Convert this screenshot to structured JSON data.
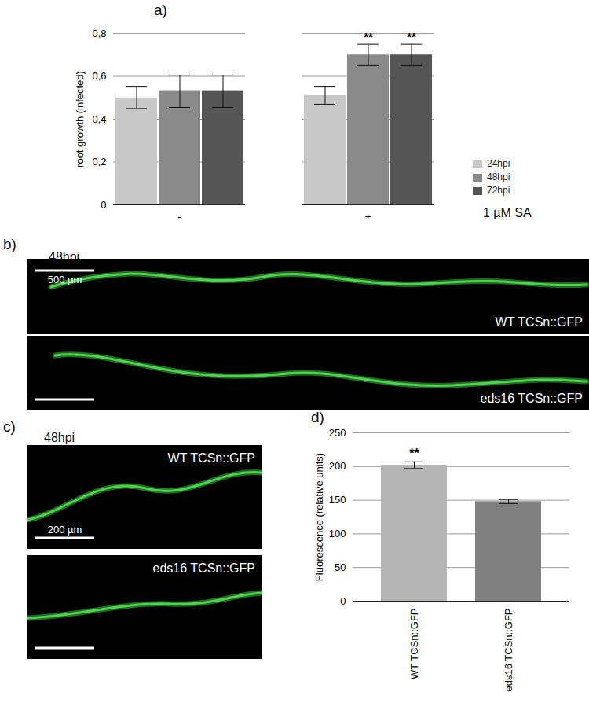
{
  "chart_data": [
    {
      "type": "bar",
      "title": "a)",
      "categories": [
        "-",
        "+"
      ],
      "xlabel": "1 µM SA",
      "ylabel": "root growth (infected)",
      "series": [
        {
          "name": "24hpi",
          "color": "#c8c8c8",
          "values": [
            0.5,
            0.51
          ],
          "errors": [
            0.05,
            0.04
          ],
          "significance": [
            null,
            null
          ]
        },
        {
          "name": "48hpi",
          "color": "#8a8a8a",
          "values": [
            0.53,
            0.7
          ],
          "errors": [
            0.075,
            0.05
          ],
          "significance": [
            null,
            "**"
          ]
        },
        {
          "name": "72hpi",
          "color": "#555555",
          "values": [
            0.53,
            0.7
          ],
          "errors": [
            0.075,
            0.05
          ],
          "significance": [
            null,
            "**"
          ]
        }
      ],
      "ylim": [
        0,
        0.8
      ],
      "yticks": [
        0,
        {
          "value": 0.2,
          "label": "0,2"
        },
        {
          "value": 0.4,
          "label": "0,4"
        },
        {
          "value": 0.6,
          "label": "0,6"
        },
        {
          "value": 0.8,
          "label": "0,8"
        }
      ],
      "grid": true,
      "legend": "right"
    },
    {
      "type": "bar",
      "title": "d)",
      "categories": [
        "WT TCSn::GFP",
        "eds16 TCSn::GFP"
      ],
      "values": [
        202,
        148
      ],
      "errors": [
        5,
        3
      ],
      "significance": [
        "**",
        null
      ],
      "colors": [
        "#b4b4b4",
        "#808080"
      ],
      "ylabel": "Fluorescence (relative units)",
      "ylim": [
        0,
        250
      ],
      "yticks": [
        0,
        50,
        100,
        150,
        200,
        250
      ],
      "grid": true
    }
  ],
  "images": [
    {
      "title": "b)",
      "subtitle": "48hpi",
      "scale_bar": "500 µm",
      "labels": [
        "WT TCSn::GFP",
        "eds16 TCSn::GFP"
      ]
    },
    {
      "title": "c)",
      "subtitle": "48hpi",
      "scale_bar": "200 µm",
      "labels": [
        "WT TCSn::GFP",
        "eds16 TCSn::GFP"
      ]
    }
  ]
}
